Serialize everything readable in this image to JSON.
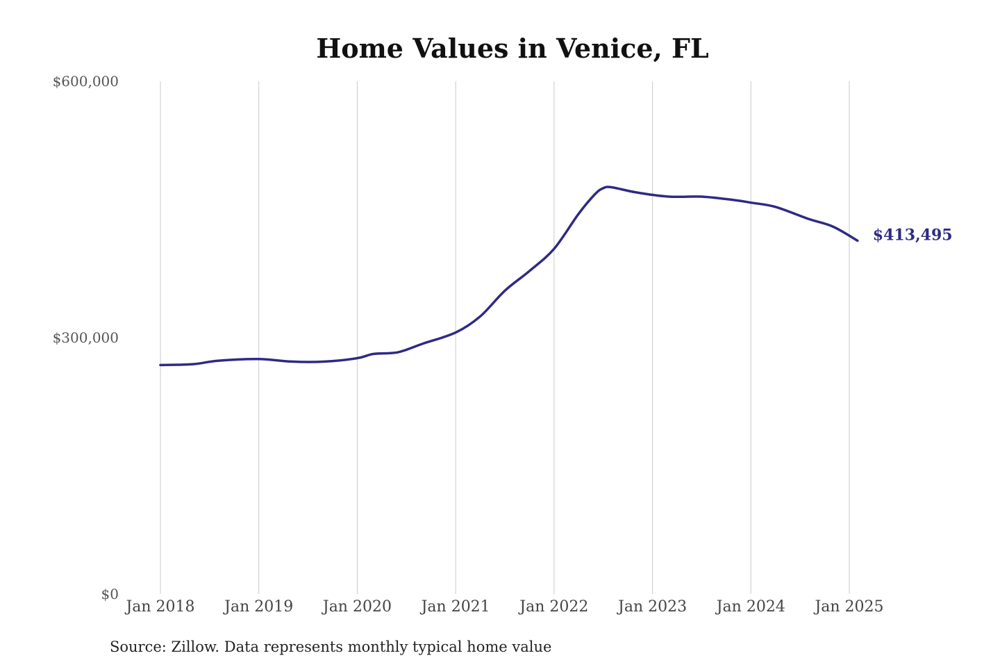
{
  "chart_data": {
    "type": "line",
    "title": "Home Values in Venice, FL",
    "source": "Source: Zillow. Data represents monthly typical home value",
    "ylim": [
      0,
      600000
    ],
    "y_ticks": [
      {
        "value": 0,
        "label": "$0"
      },
      {
        "value": 300000,
        "label": "$300,000"
      },
      {
        "value": 600000,
        "label": "$600,000"
      }
    ],
    "x_range": [
      "2018-01",
      "2025-02"
    ],
    "x_ticks": [
      {
        "date": "2018-01",
        "label": "Jan 2018"
      },
      {
        "date": "2019-01",
        "label": "Jan 2019"
      },
      {
        "date": "2020-01",
        "label": "Jan 2020"
      },
      {
        "date": "2021-01",
        "label": "Jan 2021"
      },
      {
        "date": "2022-01",
        "label": "Jan 2022"
      },
      {
        "date": "2023-01",
        "label": "Jan 2023"
      },
      {
        "date": "2024-01",
        "label": "Jan 2024"
      },
      {
        "date": "2025-01",
        "label": "Jan 2025"
      }
    ],
    "grid": {
      "vertical": true,
      "horizontal": false
    },
    "series": [
      {
        "color": "#2e2a84",
        "end_label": "$413,495",
        "points": [
          {
            "x": "2018-01",
            "y": 268000
          },
          {
            "x": "2018-05",
            "y": 269000
          },
          {
            "x": "2018-08",
            "y": 273000
          },
          {
            "x": "2019-01",
            "y": 275000
          },
          {
            "x": "2019-05",
            "y": 272000
          },
          {
            "x": "2019-09",
            "y": 272000
          },
          {
            "x": "2020-01",
            "y": 276000
          },
          {
            "x": "2020-03",
            "y": 281000
          },
          {
            "x": "2020-06",
            "y": 283000
          },
          {
            "x": "2020-09",
            "y": 293000
          },
          {
            "x": "2021-01",
            "y": 306000
          },
          {
            "x": "2021-04",
            "y": 325000
          },
          {
            "x": "2021-07",
            "y": 355000
          },
          {
            "x": "2021-10",
            "y": 378000
          },
          {
            "x": "2022-01",
            "y": 404000
          },
          {
            "x": "2022-04",
            "y": 445000
          },
          {
            "x": "2022-06",
            "y": 468000
          },
          {
            "x": "2022-07",
            "y": 475000
          },
          {
            "x": "2022-08",
            "y": 476000
          },
          {
            "x": "2022-11",
            "y": 470000
          },
          {
            "x": "2023-03",
            "y": 465000
          },
          {
            "x": "2023-07",
            "y": 465000
          },
          {
            "x": "2023-11",
            "y": 461000
          },
          {
            "x": "2024-01",
            "y": 458000
          },
          {
            "x": "2024-04",
            "y": 453000
          },
          {
            "x": "2024-08",
            "y": 439000
          },
          {
            "x": "2024-11",
            "y": 430000
          },
          {
            "x": "2025-02",
            "y": 413495
          }
        ]
      }
    ]
  }
}
